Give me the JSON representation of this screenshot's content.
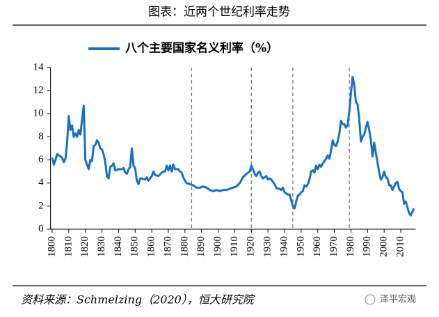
{
  "chart_data": {
    "type": "line",
    "title": "图表：近两个世纪利率走势",
    "source": "资料来源：Schmelzing（2020），恒大研究院",
    "watermark": "泽平宏观",
    "x": [
      1800,
      1801,
      1802,
      1803,
      1804,
      1806,
      1807,
      1808,
      1809,
      1810,
      1811,
      1812,
      1813,
      1814,
      1815,
      1816,
      1817,
      1818,
      1819,
      1820,
      1821,
      1822,
      1823,
      1824,
      1825,
      1826,
      1827,
      1828,
      1829,
      1830,
      1831,
      1832,
      1833,
      1834,
      1835,
      1836,
      1837,
      1838,
      1840,
      1842,
      1843,
      1844,
      1845,
      1846,
      1847,
      1848,
      1849,
      1850,
      1851,
      1852,
      1853,
      1854,
      1856,
      1857,
      1858,
      1860,
      1861,
      1862,
      1864,
      1866,
      1867,
      1868,
      1869,
      1870,
      1871,
      1872,
      1873,
      1874,
      1876,
      1877,
      1878,
      1879,
      1880,
      1881,
      1883,
      1885,
      1887,
      1889,
      1891,
      1893,
      1895,
      1897,
      1899,
      1901,
      1903,
      1905,
      1907,
      1909,
      1911,
      1913,
      1915,
      1917,
      1919,
      1920,
      1921,
      1922,
      1923,
      1924,
      1925,
      1926,
      1927,
      1928,
      1929,
      1930,
      1931,
      1932,
      1933,
      1934,
      1935,
      1936,
      1937,
      1938,
      1939,
      1940,
      1941,
      1942,
      1943,
      1944,
      1945,
      1946,
      1947,
      1948,
      1949,
      1950,
      1951,
      1952,
      1953,
      1954,
      1955,
      1956,
      1957,
      1958,
      1959,
      1960,
      1961,
      1962,
      1963,
      1964,
      1965,
      1966,
      1967,
      1968,
      1969,
      1970,
      1971,
      1972,
      1973,
      1974,
      1975,
      1976,
      1977,
      1978,
      1979,
      1980,
      1981,
      1982,
      1983,
      1984,
      1985,
      1986,
      1987,
      1988,
      1989,
      1990,
      1991,
      1992,
      1993,
      1994,
      1995,
      1996,
      1997,
      1998,
      1999,
      2000,
      2001,
      2002,
      2003,
      2004,
      2005,
      2006,
      2007,
      2008,
      2009,
      2010,
      2011,
      2012,
      2013,
      2014,
      2015,
      2016,
      2017,
      2018
    ],
    "series": [
      {
        "name": "八个主要国家名义利率（%）",
        "color": "#1a6fbf",
        "values": [
          6.2,
          5.6,
          6.0,
          6.5,
          6.4,
          6.2,
          5.8,
          6.1,
          7.5,
          9.8,
          8.6,
          9.0,
          8.0,
          8.3,
          8.0,
          8.6,
          8.2,
          9.5,
          10.7,
          6.0,
          5.6,
          5.2,
          6.0,
          5.9,
          7.2,
          7.3,
          7.7,
          7.5,
          7.0,
          6.9,
          6.5,
          5.8,
          4.6,
          4.4,
          5.4,
          5.5,
          5.7,
          5.1,
          5.2,
          5.2,
          5.3,
          4.9,
          4.8,
          5.2,
          5.4,
          7.0,
          5.5,
          5.3,
          4.2,
          3.9,
          4.4,
          4.4,
          4.3,
          4.5,
          4.2,
          4.6,
          5.0,
          4.7,
          4.6,
          4.9,
          5.0,
          5.0,
          5.5,
          5.1,
          5.5,
          5.0,
          5.6,
          5.2,
          5.2,
          5.0,
          4.9,
          4.5,
          4.2,
          4.0,
          3.9,
          3.8,
          3.6,
          3.6,
          3.7,
          3.6,
          3.4,
          3.3,
          3.4,
          3.3,
          3.4,
          3.4,
          3.5,
          3.6,
          3.7,
          4.0,
          4.5,
          4.8,
          5.0,
          5.5,
          5.2,
          4.8,
          4.6,
          4.9,
          5.0,
          4.6,
          4.4,
          4.5,
          4.6,
          4.3,
          4.4,
          4.3,
          4.1,
          3.9,
          3.6,
          3.5,
          3.5,
          3.4,
          3.6,
          3.2,
          3.1,
          3.0,
          3.0,
          2.5,
          2.0,
          1.8,
          2.4,
          2.9,
          3.0,
          3.2,
          3.3,
          3.8,
          3.7,
          3.9,
          4.3,
          5.0,
          5.1,
          4.9,
          5.5,
          5.2,
          5.6,
          5.4,
          5.7,
          5.9,
          6.1,
          6.4,
          6.1,
          6.8,
          7.7,
          7.3,
          7.2,
          7.6,
          8.3,
          9.4,
          9.1,
          9.1,
          8.8,
          9.0,
          10.2,
          11.8,
          13.2,
          12.5,
          11.0,
          10.8,
          9.5,
          7.6,
          8.0,
          8.2,
          8.8,
          9.3,
          8.6,
          7.7,
          6.3,
          7.5,
          6.6,
          5.8,
          4.9,
          4.3,
          4.5,
          5.0,
          4.5,
          4.4,
          3.8,
          3.8,
          3.4,
          3.7,
          4.0,
          4.1,
          3.5,
          3.3,
          3.2,
          2.2,
          2.4,
          1.9,
          1.4,
          1.2,
          1.5,
          1.8
        ]
      }
    ],
    "reference_lines": [
      1884,
      1920,
      1945,
      1979
    ],
    "xlim": [
      1799,
      2019
    ],
    "ylim": [
      0,
      14
    ],
    "xticks": [
      1800,
      1810,
      1820,
      1830,
      1840,
      1850,
      1860,
      1870,
      1880,
      1890,
      1900,
      1910,
      1920,
      1930,
      1940,
      1950,
      1960,
      1970,
      1980,
      1990,
      2000,
      2010
    ],
    "yticks": [
      0,
      2,
      4,
      6,
      8,
      10,
      12,
      14
    ],
    "legend": "top"
  }
}
